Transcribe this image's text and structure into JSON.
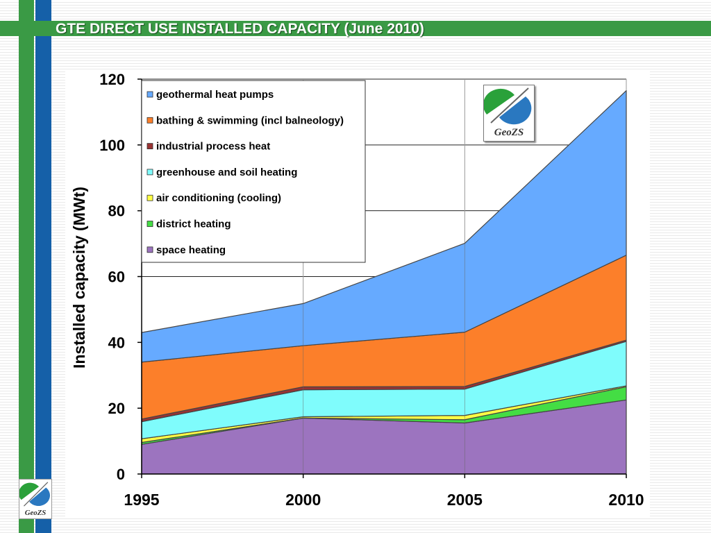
{
  "slide": {
    "title": "GTE DIRECT USE INSTALLED CAPACITY (June 2010)",
    "logo_text": "GeoZS"
  },
  "colors": {
    "accent_green": "#3a9a45",
    "accent_blue": "#1560a8"
  },
  "chart_data": {
    "type": "area",
    "stacked": true,
    "title": "",
    "xlabel": "",
    "ylabel": "Installed capacity (MWt)",
    "x": [
      1995,
      2000,
      2005,
      2010
    ],
    "x_ticks": [
      "1995",
      "2000",
      "2005",
      "2010"
    ],
    "ylim": [
      0,
      120
    ],
    "y_ticks": [
      "0",
      "20",
      "40",
      "60",
      "80",
      "100",
      "120"
    ],
    "grid": "horizontal and vertical",
    "legend_position": "top-left",
    "series": [
      {
        "name": "space heating",
        "color": "#9c74bf",
        "values": [
          9,
          17,
          15.5,
          22.5
        ]
      },
      {
        "name": "district heating",
        "color": "#44dd44",
        "values": [
          0.6,
          0,
          1,
          4
        ]
      },
      {
        "name": "air conditioning (cooling)",
        "color": "#ffff44",
        "values": [
          1.1,
          0.4,
          1.3,
          0.3
        ]
      },
      {
        "name": "greenhouse and soil heating",
        "color": "#7ffcfc",
        "values": [
          5.2,
          8.2,
          8,
          13.5
        ]
      },
      {
        "name": "industrial process heat",
        "color": "#993333",
        "values": [
          0.8,
          0.9,
          0.8,
          0.4
        ]
      },
      {
        "name": "bathing & swimming (incl balneology)",
        "color": "#fc7f2a",
        "values": [
          17.3,
          12.5,
          16.5,
          25.8
        ]
      },
      {
        "name": "geothermal heat pumps",
        "color": "#66aaff",
        "values": [
          9,
          12.8,
          27,
          50
        ]
      }
    ]
  }
}
